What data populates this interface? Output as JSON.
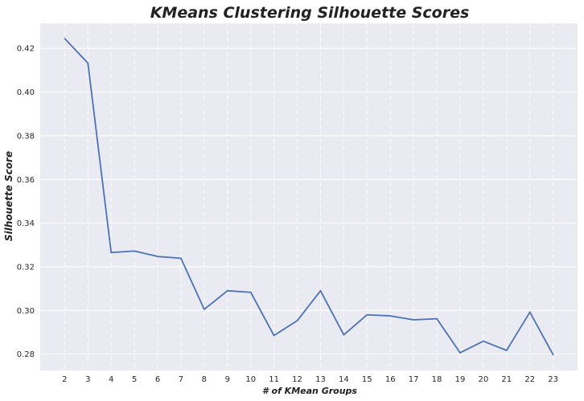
{
  "chart_data": {
    "type": "line",
    "title": "KMeans Clustering Silhouette Scores",
    "xlabel": "# of KMean Groups",
    "ylabel": "Silhouette Score",
    "x": [
      2,
      3,
      4,
      5,
      6,
      7,
      8,
      9,
      10,
      11,
      12,
      13,
      14,
      15,
      16,
      17,
      18,
      19,
      20,
      21,
      22,
      23
    ],
    "series": [
      {
        "values": [
          0.4245,
          0.4133,
          0.3265,
          0.3272,
          0.3247,
          0.3239,
          0.3005,
          0.309,
          0.3083,
          0.2885,
          0.2953,
          0.309,
          0.2888,
          0.298,
          0.2975,
          0.2957,
          0.2962,
          0.2806,
          0.2859,
          0.2817,
          0.2992,
          0.2797
        ],
        "color": "#4c72b0"
      }
    ],
    "xticks": [
      "2",
      "3",
      "4",
      "5",
      "6",
      "7",
      "8",
      "9",
      "10",
      "11",
      "12",
      "13",
      "14",
      "15",
      "16",
      "17",
      "18",
      "19",
      "20",
      "21",
      "22",
      "23"
    ],
    "yticks": [
      "0.28",
      "0.30",
      "0.32",
      "0.34",
      "0.36",
      "0.38",
      "0.40",
      "0.42"
    ],
    "ylim": [
      0.2725,
      0.4315
    ],
    "xlim": [
      0.95,
      24.05
    ],
    "grid": {
      "y": "solid",
      "x": "dashed"
    },
    "background": "#eaeaf2",
    "grid_color": "#ffffff"
  }
}
